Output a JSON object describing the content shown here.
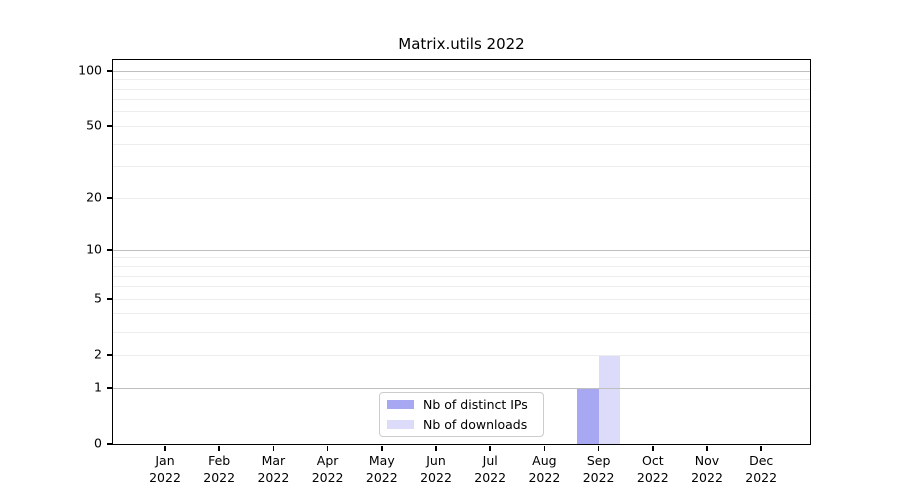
{
  "chart_data": {
    "type": "bar",
    "title": "Matrix.utils 2022",
    "categories": [
      "Jan 2022",
      "Feb 2022",
      "Mar 2022",
      "Apr 2022",
      "May 2022",
      "Jun 2022",
      "Jul 2022",
      "Aug 2022",
      "Sep 2022",
      "Oct 2022",
      "Nov 2022",
      "Dec 2022"
    ],
    "x_tick_labels": [
      {
        "month": "Jan",
        "year": "2022"
      },
      {
        "month": "Feb",
        "year": "2022"
      },
      {
        "month": "Mar",
        "year": "2022"
      },
      {
        "month": "Apr",
        "year": "2022"
      },
      {
        "month": "May",
        "year": "2022"
      },
      {
        "month": "Jun",
        "year": "2022"
      },
      {
        "month": "Jul",
        "year": "2022"
      },
      {
        "month": "Aug",
        "year": "2022"
      },
      {
        "month": "Sep",
        "year": "2022"
      },
      {
        "month": "Oct",
        "year": "2022"
      },
      {
        "month": "Nov",
        "year": "2022"
      },
      {
        "month": "Dec",
        "year": "2022"
      }
    ],
    "series": [
      {
        "name": "Nb of distinct IPs",
        "color": "#a7a7f2",
        "values": [
          0,
          0,
          0,
          0,
          0,
          0,
          0,
          0,
          1,
          0,
          0,
          0
        ]
      },
      {
        "name": "Nb of downloads",
        "color": "#dcdcfa",
        "values": [
          0,
          0,
          0,
          0,
          0,
          0,
          0,
          0,
          2,
          0,
          0,
          0
        ]
      }
    ],
    "xlabel": "",
    "ylabel": "",
    "yscale": "log1p",
    "ylim": [
      0,
      115
    ],
    "y_tick_values": [
      0,
      1,
      2,
      5,
      10,
      20,
      50,
      100
    ],
    "y_tick_labels": [
      "0",
      "1",
      "2",
      "5",
      "10",
      "20",
      "50",
      "100"
    ],
    "y_major_gridlines": [
      1,
      10,
      100
    ],
    "y_minor_gridlines": [
      2,
      3,
      4,
      5,
      6,
      7,
      8,
      9,
      20,
      30,
      40,
      50,
      60,
      70,
      80,
      90
    ],
    "grid": true,
    "legend_position": "lower center"
  },
  "legend": {
    "items": [
      "Nb of distinct IPs",
      "Nb of downloads"
    ]
  },
  "colors": {
    "background": "#ffffff",
    "axis": "#000000",
    "text": "#000000",
    "grid_major": "#bfbfbf",
    "grid_minor": "#ededed",
    "bar_distinct_ips": "#a7a7f2",
    "bar_downloads": "#dcdcfa",
    "legend_border": "#cccccc"
  }
}
